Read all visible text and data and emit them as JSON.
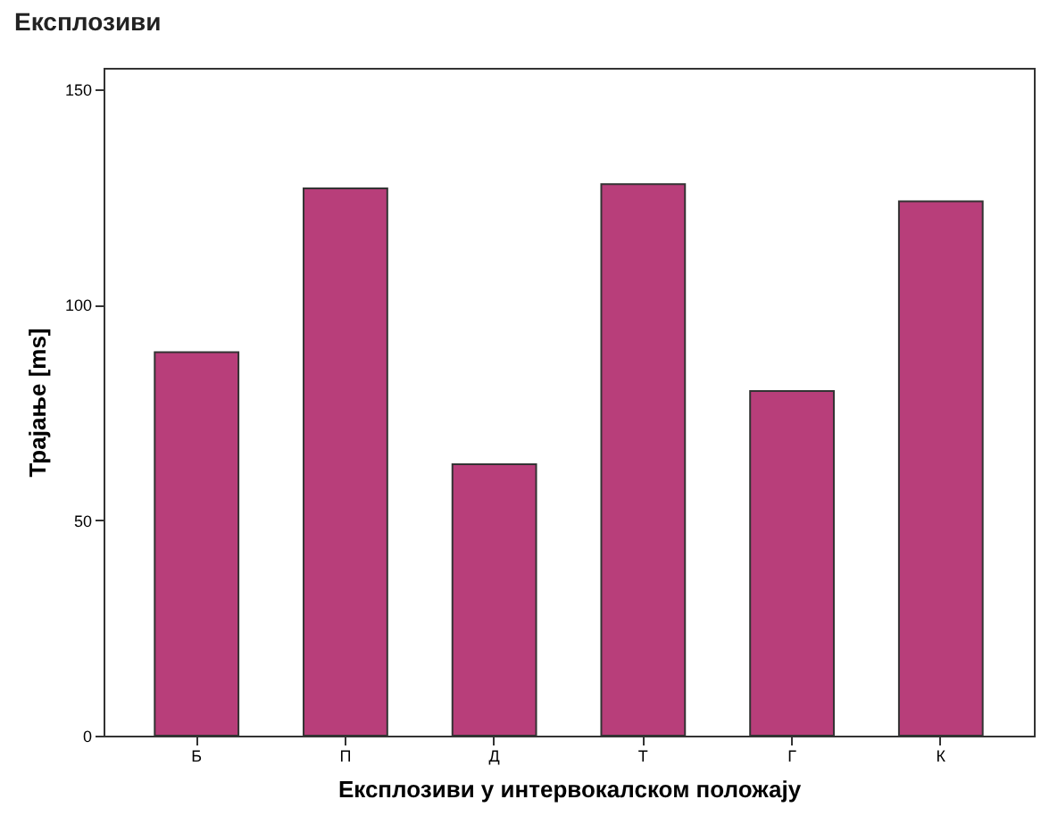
{
  "chart_data": {
    "type": "bar",
    "title": "Експлозиви",
    "xlabel": "Експлозиви у интервокалском положају",
    "ylabel": "Трајање [ms]",
    "categories": [
      "Б",
      "П",
      "Д",
      "Т",
      "Г",
      "К"
    ],
    "values": [
      89,
      127,
      63,
      128,
      80,
      124
    ],
    "color": "#b83e7a",
    "ylim": [
      0,
      155
    ],
    "yticks": [
      0,
      50,
      100,
      150
    ],
    "grid": false
  }
}
